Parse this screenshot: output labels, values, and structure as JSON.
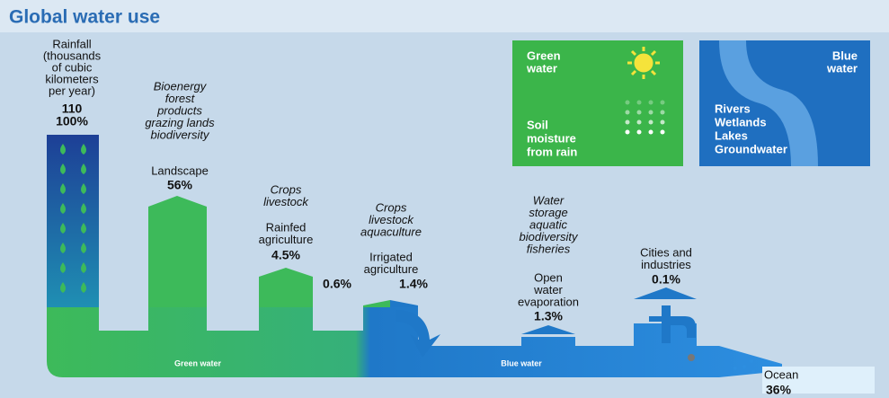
{
  "title": "Global water use",
  "rainfall": {
    "label": [
      "Rainfall",
      "(thousands",
      "of cubic",
      "kilometers",
      "per year)"
    ],
    "amount": "110",
    "share": "100%"
  },
  "uses": [
    {
      "activities": [
        "Bioenergy",
        "forest",
        "products",
        "grazing lands",
        "biodiversity"
      ],
      "name": [
        "Landscape"
      ],
      "shares": [
        "56%"
      ]
    },
    {
      "activities": [
        "Crops",
        "livestock"
      ],
      "name": [
        "Rainfed",
        "agriculture"
      ],
      "shares": [
        "4.5%"
      ]
    },
    {
      "activities": [
        "Crops",
        "livestock",
        "aquaculture"
      ],
      "name": [
        "Irrigated",
        "agriculture"
      ],
      "shares": [
        "0.6%",
        "1.4%"
      ]
    },
    {
      "activities": [
        "Water",
        "storage",
        "aquatic",
        "biodiversity",
        "fisheries"
      ],
      "name": [
        "Open",
        "water",
        "evaporation"
      ],
      "shares": [
        "1.3%"
      ]
    },
    {
      "name": [
        "Cities and",
        "industries"
      ],
      "shares": [
        "0.1%"
      ]
    }
  ],
  "flows": [
    "Green water",
    "Blue water"
  ],
  "ocean": {
    "name": "Ocean",
    "share": "36%"
  },
  "legend": {
    "green": {
      "title": [
        "Green",
        "water"
      ],
      "text": [
        "Soil",
        "moisture",
        "from rain"
      ]
    },
    "blue": {
      "title": [
        "Blue",
        "water"
      ],
      "text": [
        "Rivers",
        "Wetlands",
        "Lakes",
        "Groundwater"
      ]
    }
  }
}
